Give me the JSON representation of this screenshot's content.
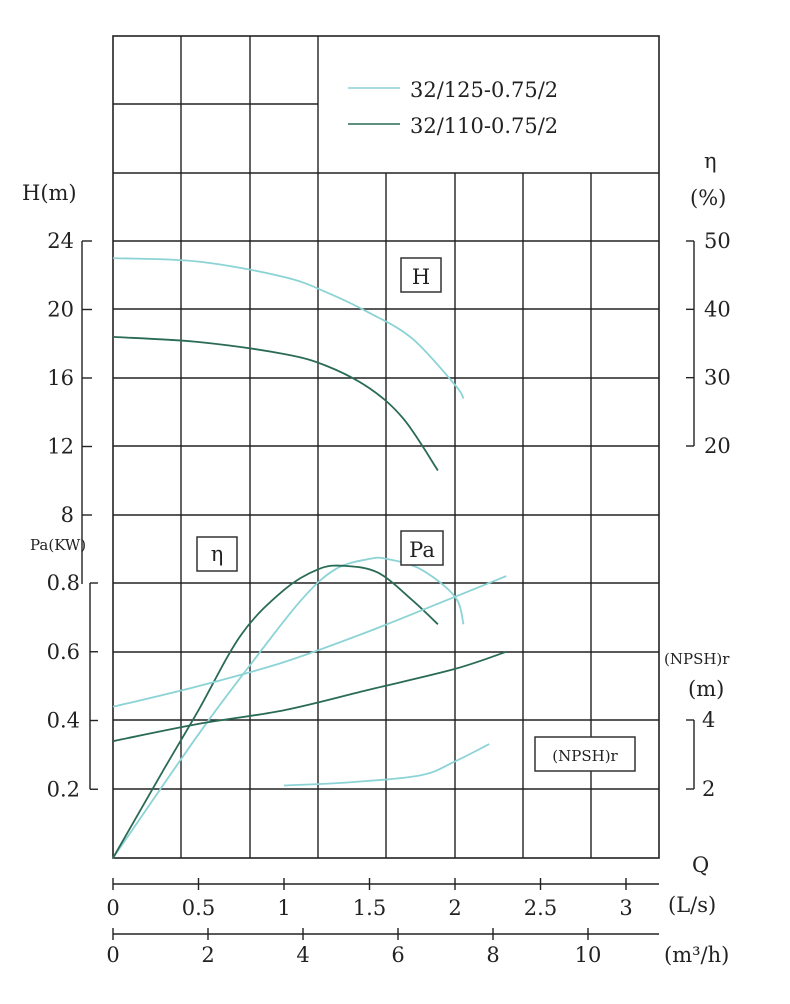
{
  "chart_data": {
    "type": "line",
    "legend": {
      "placement": "top-right",
      "entries": [
        {
          "label": "32/125-0.75/2",
          "color": "#8cd3d6"
        },
        {
          "label": "32/110-0.75/2",
          "color": "#2a6b55"
        }
      ]
    },
    "axes": {
      "head": {
        "label": "H(m)",
        "ticks": [
          "8",
          "12",
          "16",
          "20",
          "24"
        ],
        "range": [
          8,
          24
        ]
      },
      "efficiency": {
        "label_line1": "η",
        "label_line2": "(%)",
        "ticks": [
          "20",
          "30",
          "40",
          "50"
        ],
        "range": [
          20,
          50
        ]
      },
      "power": {
        "label": "Pa(KW)",
        "ticks": [
          "0.2",
          "0.4",
          "0.6",
          "0.8"
        ],
        "range": [
          0,
          0.8
        ]
      },
      "npsh": {
        "label_line1": "(NPSH)r",
        "label_line2": "(m)",
        "ticks": [
          "2",
          "4"
        ],
        "range": [
          2,
          4
        ]
      },
      "flow_ls": {
        "label_q": "Q",
        "label": "(L/s)",
        "ticks": [
          "0",
          "0.5",
          "1",
          "1.5",
          "2",
          "2.5",
          "3"
        ],
        "range": [
          0,
          3
        ]
      },
      "flow_m3h": {
        "label": "(m³/h)",
        "ticks": [
          "0",
          "2",
          "4",
          "6",
          "8",
          "10"
        ],
        "range": [
          0,
          10
        ]
      }
    },
    "curve_labels": {
      "head": "H",
      "efficiency": "η",
      "power": "Pa",
      "npsh": "(NPSH)r"
    },
    "series": [
      {
        "name": "32/125-0.75/2",
        "curve": "head",
        "color": "#8cd3d6",
        "points": [
          [
            0,
            23.0
          ],
          [
            0.5,
            22.8
          ],
          [
            1.0,
            21.9
          ],
          [
            1.25,
            21.0
          ],
          [
            1.5,
            19.8
          ],
          [
            1.75,
            18.3
          ],
          [
            2.0,
            15.6
          ],
          [
            2.05,
            14.8
          ]
        ]
      },
      {
        "name": "32/110-0.75/2",
        "curve": "head",
        "color": "#2a6b55",
        "points": [
          [
            0,
            18.4
          ],
          [
            0.5,
            18.1
          ],
          [
            1.0,
            17.4
          ],
          [
            1.25,
            16.7
          ],
          [
            1.5,
            15.4
          ],
          [
            1.7,
            13.6
          ],
          [
            1.9,
            10.6
          ]
        ]
      },
      {
        "name": "32/125-0.75/2",
        "curve": "efficiency",
        "color": "#8cd3d6",
        "points": [
          [
            0,
            0.0
          ],
          [
            0.5,
            0.36
          ],
          [
            0.8,
            0.56
          ],
          [
            1.1,
            0.75
          ],
          [
            1.3,
            0.84
          ],
          [
            1.5,
            0.87
          ],
          [
            1.6,
            0.87
          ],
          [
            1.8,
            0.84
          ],
          [
            2.0,
            0.76
          ],
          [
            2.05,
            0.68
          ]
        ]
      },
      {
        "name": "32/110-0.75/2",
        "curve": "efficiency",
        "color": "#2a6b55",
        "points": [
          [
            0,
            0.0
          ],
          [
            0.3,
            0.26
          ],
          [
            0.5,
            0.43
          ],
          [
            0.75,
            0.65
          ],
          [
            1.0,
            0.78
          ],
          [
            1.2,
            0.84
          ],
          [
            1.35,
            0.85
          ],
          [
            1.55,
            0.83
          ],
          [
            1.75,
            0.75
          ],
          [
            1.9,
            0.68
          ]
        ]
      },
      {
        "name": "32/125-0.75/2",
        "curve": "power",
        "color": "#8cd3d6",
        "points": [
          [
            0,
            0.44
          ],
          [
            0.5,
            0.5
          ],
          [
            1.0,
            0.57
          ],
          [
            1.5,
            0.66
          ],
          [
            2.0,
            0.76
          ],
          [
            2.3,
            0.82
          ]
        ]
      },
      {
        "name": "32/110-0.75/2",
        "curve": "power",
        "color": "#2a6b55",
        "points": [
          [
            0,
            0.34
          ],
          [
            0.5,
            0.39
          ],
          [
            1.0,
            0.43
          ],
          [
            1.5,
            0.49
          ],
          [
            2.0,
            0.55
          ],
          [
            2.3,
            0.6
          ]
        ]
      },
      {
        "name": "32/125-0.75/2",
        "curve": "npsh",
        "color": "#8cd3d6",
        "points": [
          [
            1.0,
            2.1
          ],
          [
            1.4,
            2.2
          ],
          [
            1.8,
            2.4
          ],
          [
            2.0,
            2.8
          ],
          [
            2.2,
            3.3
          ]
        ]
      }
    ]
  }
}
